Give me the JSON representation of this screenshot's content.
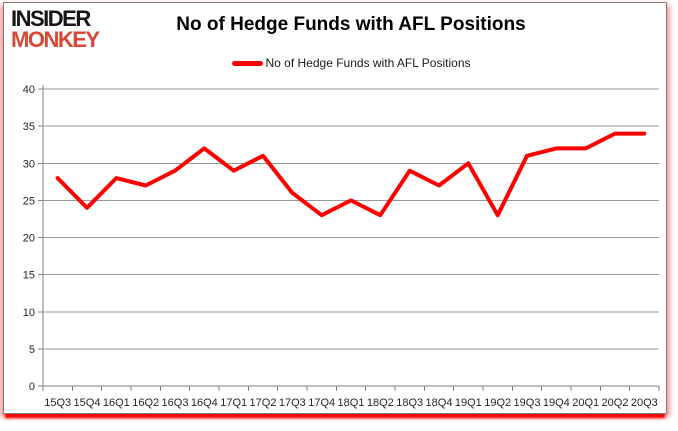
{
  "logo": {
    "line1": "INSIDER",
    "line2": "MONKEY"
  },
  "header": {
    "title": "No of Hedge Funds with AFL Positions"
  },
  "legend": {
    "label": "No of Hedge Funds with AFL Positions",
    "marker_color": "#ff0000"
  },
  "colors": {
    "line": "#ff0000",
    "grid": "#999999",
    "axis": "#808080",
    "tick_text": "#262626",
    "logo_black": "#161616",
    "logo_red": "#da4735",
    "frame_border": "#808080",
    "frame_shadow": "#ff0000"
  },
  "chart_data": {
    "type": "line",
    "title": "No of Hedge Funds with AFL Positions",
    "categories": [
      "15Q3",
      "15Q4",
      "16Q1",
      "16Q2",
      "16Q3",
      "16Q4",
      "17Q1",
      "17Q2",
      "17Q3",
      "17Q4",
      "18Q1",
      "18Q2",
      "18Q3",
      "18Q4",
      "19Q1",
      "19Q2",
      "19Q3",
      "19Q4",
      "20Q1",
      "20Q2",
      "20Q3"
    ],
    "series": [
      {
        "name": "No of Hedge Funds with AFL Positions",
        "color": "#ff0000",
        "values": [
          28,
          24,
          28,
          27,
          29,
          32,
          29,
          31,
          26,
          23,
          25,
          23,
          29,
          27,
          30,
          23,
          31,
          32,
          32,
          34,
          34
        ]
      }
    ],
    "xlabel": "",
    "ylabel": "",
    "ylim": [
      0,
      40
    ],
    "ytick_step": 5,
    "yticks": [
      0,
      5,
      10,
      15,
      20,
      25,
      30,
      35,
      40
    ],
    "grid": true,
    "legend_position": "top-center"
  }
}
